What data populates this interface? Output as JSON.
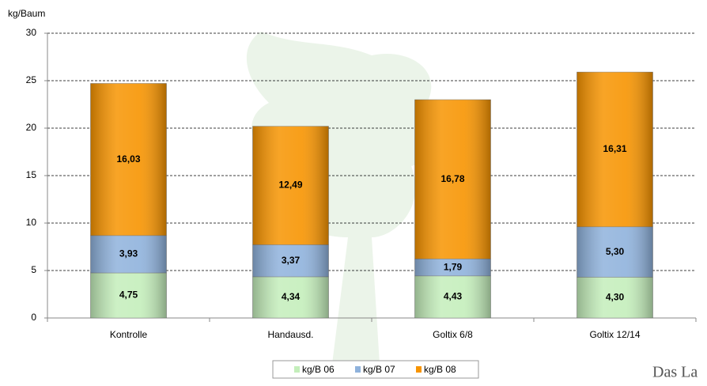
{
  "chart_data": {
    "type": "stacked_bar",
    "y_axis_label": "kg/Baum",
    "categories": [
      "Kontrolle",
      "Handausd.",
      "Goltix 6/8",
      "Goltix 12/14"
    ],
    "series": [
      {
        "name": "kg/B 06",
        "color": "#c4eebb",
        "values": [
          4.75,
          4.34,
          4.43,
          4.3
        ],
        "value_labels": [
          "4,75",
          "4,34",
          "4,43",
          "4,30"
        ]
      },
      {
        "name": "kg/B 07",
        "color": "#8fb2dc",
        "values": [
          3.93,
          3.37,
          1.79,
          5.3
        ],
        "value_labels": [
          "3,93",
          "3,37",
          "1,79",
          "5,30"
        ]
      },
      {
        "name": "kg/B 08",
        "color": "#f79400",
        "values": [
          16.03,
          12.49,
          16.78,
          16.31
        ],
        "value_labels": [
          "16,03",
          "12,49",
          "16,78",
          "16,31"
        ]
      }
    ],
    "ylim": [
      0,
      30
    ],
    "yticks": [
      0,
      5,
      10,
      15,
      20,
      25,
      30
    ],
    "grid": true,
    "legend": "bottom",
    "footer_text": "Das La"
  }
}
